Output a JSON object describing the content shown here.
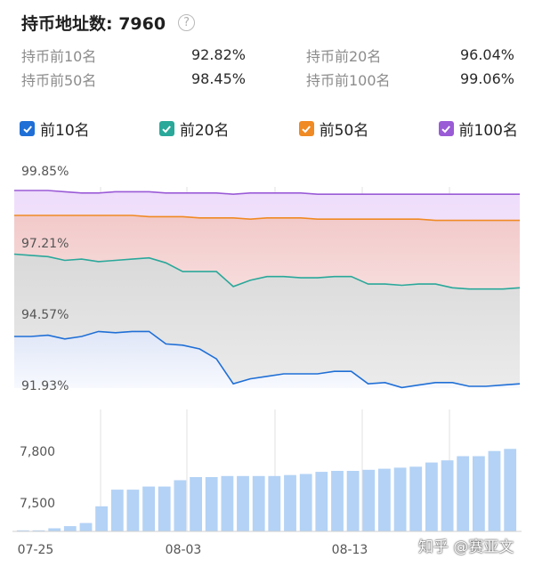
{
  "header": {
    "title": "持币地址数: 7960",
    "help_icon": "?"
  },
  "stats": [
    {
      "label_a": "持币前10名",
      "value_a": "92.82%",
      "label_b": "持币前20名",
      "value_b": "96.04%"
    },
    {
      "label_a": "持币前50名",
      "value_a": "98.45%",
      "label_b": "持币前100名",
      "value_b": "99.06%"
    }
  ],
  "legend": [
    {
      "label": "前10名",
      "color": "#1f6fd6"
    },
    {
      "label": "前20名",
      "color": "#2aa89a"
    },
    {
      "label": "前50名",
      "color": "#f08a24"
    },
    {
      "label": "前100名",
      "color": "#9a5bd6"
    }
  ],
  "watermark": "知乎 @赛亚文",
  "chart_data": [
    {
      "type": "area",
      "y_ticks": [
        "99.85%",
        "97.21%",
        "94.57%",
        "91.93%"
      ],
      "ylim": [
        91.93,
        99.85
      ],
      "grid": true,
      "series": [
        {
          "name": "前10名",
          "color": "#1f6fd6",
          "values": [
            94.0,
            94.0,
            94.05,
            93.9,
            94.0,
            94.2,
            94.15,
            94.2,
            94.2,
            93.7,
            93.65,
            93.5,
            93.1,
            92.1,
            92.3,
            92.4,
            92.5,
            92.5,
            92.5,
            92.6,
            92.6,
            92.1,
            92.15,
            91.95,
            92.05,
            92.15,
            92.15,
            92.0,
            92.0,
            92.05,
            92.1
          ]
        },
        {
          "name": "前20名",
          "color": "#2aa89a",
          "values": [
            97.3,
            97.25,
            97.2,
            97.05,
            97.1,
            97.0,
            97.05,
            97.1,
            97.15,
            96.95,
            96.6,
            96.6,
            96.6,
            96.0,
            96.25,
            96.4,
            96.4,
            96.35,
            96.35,
            96.4,
            96.4,
            96.1,
            96.1,
            96.05,
            96.1,
            96.1,
            95.95,
            95.9,
            95.9,
            95.9,
            95.95
          ]
        },
        {
          "name": "前50名",
          "color": "#f08a24",
          "values": [
            98.85,
            98.85,
            98.85,
            98.85,
            98.85,
            98.85,
            98.85,
            98.85,
            98.8,
            98.8,
            98.8,
            98.75,
            98.75,
            98.75,
            98.7,
            98.75,
            98.75,
            98.75,
            98.7,
            98.7,
            98.7,
            98.7,
            98.7,
            98.7,
            98.7,
            98.65,
            98.65,
            98.65,
            98.65,
            98.65,
            98.65
          ]
        },
        {
          "name": "前100名",
          "color": "#9a5bd6",
          "values": [
            99.85,
            99.85,
            99.85,
            99.8,
            99.75,
            99.75,
            99.8,
            99.8,
            99.8,
            99.75,
            99.75,
            99.75,
            99.75,
            99.7,
            99.75,
            99.75,
            99.75,
            99.75,
            99.7,
            99.7,
            99.7,
            99.7,
            99.7,
            99.7,
            99.7,
            99.7,
            99.7,
            99.7,
            99.7,
            99.7,
            99.7
          ]
        }
      ]
    },
    {
      "type": "bar",
      "color": "#b3d2f5",
      "x_ticks": [
        "07-25",
        "08-03",
        "08-13"
      ],
      "y_ticks": [
        "7,800",
        "7,500"
      ],
      "ylim": [
        7440,
        7960
      ],
      "values": [
        7445,
        7445,
        7455,
        7465,
        7480,
        7560,
        7640,
        7640,
        7655,
        7655,
        7685,
        7700,
        7700,
        7705,
        7705,
        7705,
        7705,
        7710,
        7715,
        7725,
        7730,
        7730,
        7735,
        7740,
        7745,
        7750,
        7770,
        7780,
        7800,
        7800,
        7825,
        7835
      ]
    }
  ]
}
